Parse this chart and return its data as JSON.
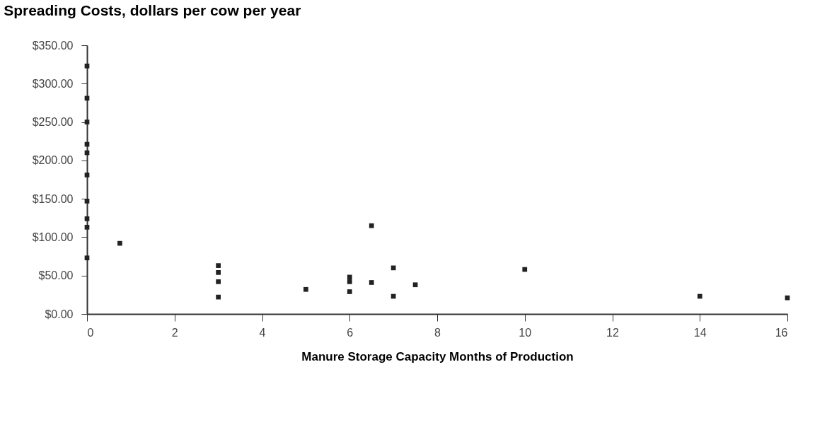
{
  "chart_data": {
    "type": "scatter",
    "title": "Spreading Costs, dollars per cow per year",
    "xlabel": "Manure Storage Capacity Months of Production",
    "x": [
      0,
      0,
      0,
      0,
      0,
      0,
      0,
      0,
      0,
      0,
      0.75,
      3,
      3,
      3,
      3,
      5,
      6,
      6,
      6,
      6.5,
      6.5,
      7,
      7,
      7.5,
      10,
      14,
      16
    ],
    "series": [
      {
        "color": "#222222",
        "values": [
          323,
          281,
          250,
          221,
          210,
          181,
          147,
          124,
          113,
          73,
          92,
          63,
          54,
          42,
          22,
          32,
          48,
          42,
          29,
          115,
          41,
          60,
          23,
          38,
          58,
          23,
          21
        ]
      }
    ],
    "marker": "square",
    "grid": false,
    "legend": false,
    "xlim": [
      0,
      16
    ],
    "xticks": [
      0,
      2,
      4,
      6,
      8,
      10,
      12,
      14,
      16
    ],
    "ylim": [
      0,
      350
    ],
    "yticks": [
      {
        "value": 0,
        "label": "$0.00"
      },
      {
        "value": 50,
        "label": "$50.00"
      },
      {
        "value": 100,
        "label": "$100.00"
      },
      {
        "value": 150,
        "label": "$150.00"
      },
      {
        "value": 200,
        "label": "$200.00"
      },
      {
        "value": 250,
        "label": "$250.00"
      },
      {
        "value": 300,
        "label": "$300.00"
      },
      {
        "value": 350,
        "label": "$350.00"
      }
    ]
  }
}
